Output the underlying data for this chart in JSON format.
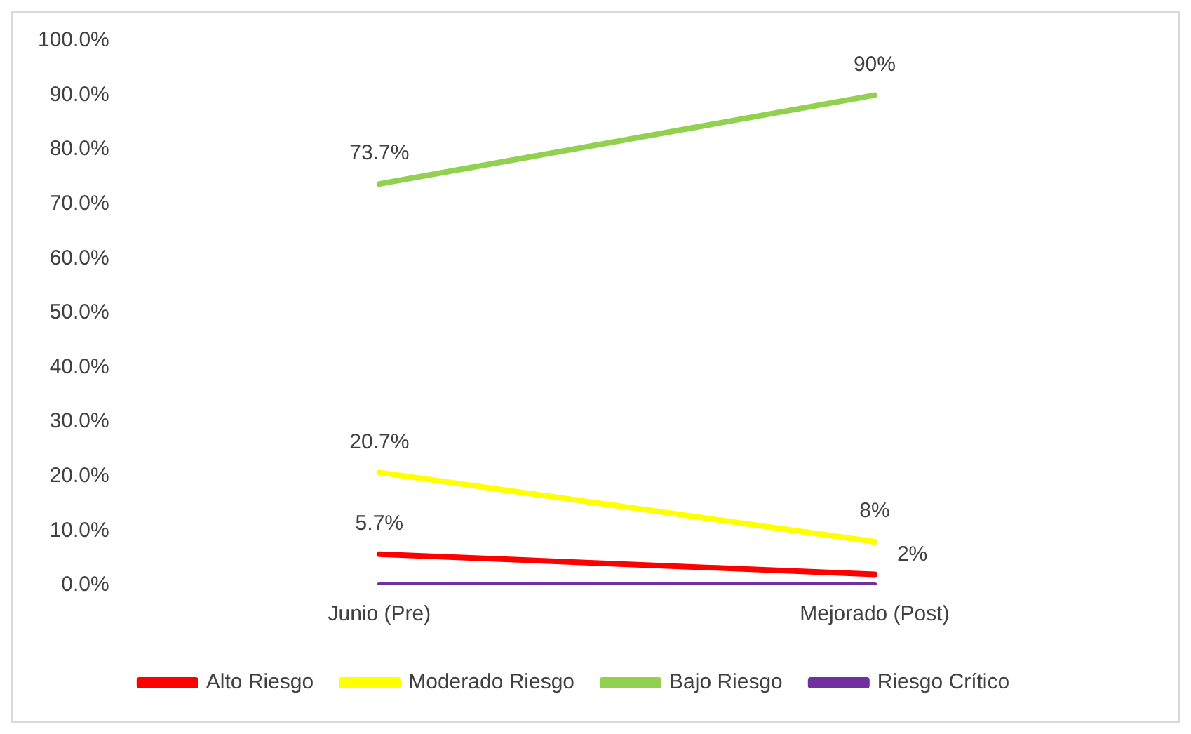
{
  "chart_data": {
    "type": "line",
    "categories": [
      "Junio (Pre)",
      "Mejorado (Post)"
    ],
    "series": [
      {
        "name": "Alto Riesgo",
        "color": "#ff0000",
        "values": [
          5.7,
          2
        ],
        "value_labels": [
          "5.7%",
          "2%"
        ]
      },
      {
        "name": "Moderado Riesgo",
        "color": "#ffff00",
        "values": [
          20.7,
          8
        ],
        "value_labels": [
          "20.7%",
          "8%"
        ]
      },
      {
        "name": "Bajo Riesgo",
        "color": "#92d050",
        "values": [
          73.7,
          90
        ],
        "value_labels": [
          "73.7%",
          "90%"
        ]
      },
      {
        "name": "Riesgo Crítico",
        "color": "#7030a0",
        "values": [
          0,
          0
        ],
        "value_labels": [
          null,
          null
        ]
      }
    ],
    "ylim": [
      0,
      100
    ],
    "yticks": [
      {
        "value": 0,
        "label": "0.0%"
      },
      {
        "value": 10,
        "label": "10.0%"
      },
      {
        "value": 20,
        "label": "20.0%"
      },
      {
        "value": 30,
        "label": "30.0%"
      },
      {
        "value": 40,
        "label": "40.0%"
      },
      {
        "value": 50,
        "label": "50.0%"
      },
      {
        "value": 60,
        "label": "60.0%"
      },
      {
        "value": 70,
        "label": "70.0%"
      },
      {
        "value": 80,
        "label": "80.0%"
      },
      {
        "value": 90,
        "label": "90.0%"
      },
      {
        "value": 100,
        "label": "100.0%"
      }
    ],
    "grid": false,
    "legend": "bottom",
    "marker": "none",
    "line_style": "solid"
  }
}
